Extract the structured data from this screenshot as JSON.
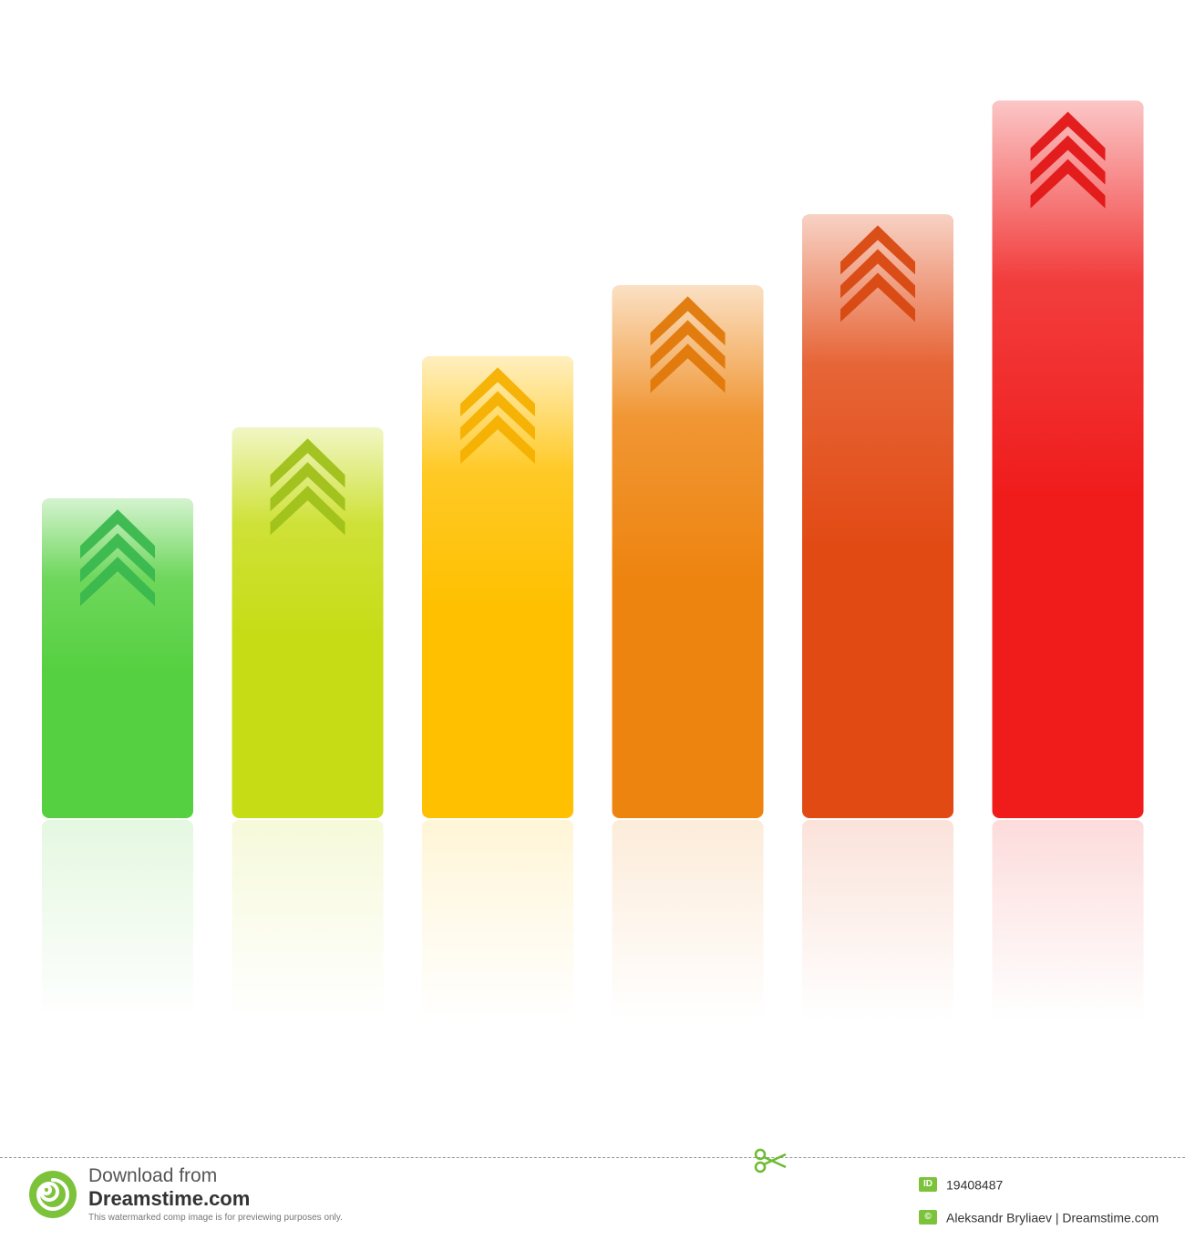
{
  "chart_data": {
    "type": "bar",
    "categories": [
      "",
      "",
      "",
      "",
      "",
      ""
    ],
    "values": [
      45,
      55,
      65,
      75,
      85,
      101
    ],
    "ylim": [
      0,
      108
    ],
    "grid": false,
    "legend": "none",
    "bar_colors": [
      "#55d040",
      "#c6dc14",
      "#ffc000",
      "#ee8410",
      "#e24a14",
      "#f01c1c"
    ],
    "arrow_colors": [
      "#3ab84e",
      "#9fc01a",
      "#f5b000",
      "#e07808",
      "#d84810",
      "#e21616"
    ],
    "arrow_icon": "chevron-up-icon",
    "reflection": true
  },
  "footer": {
    "download_line1": "Download from",
    "download_line2": "Dreamstime.com",
    "note": "This watermarked comp image is for previewing purposes only.",
    "id_badge": "ID",
    "id_value": "19408487",
    "credit_symbol": "©",
    "credit": "Aleksandr Bryliaev | Dreamstime.com",
    "logo_icon": "dreamstime-spiral-icon",
    "scissors_icon": "scissors-icon"
  }
}
